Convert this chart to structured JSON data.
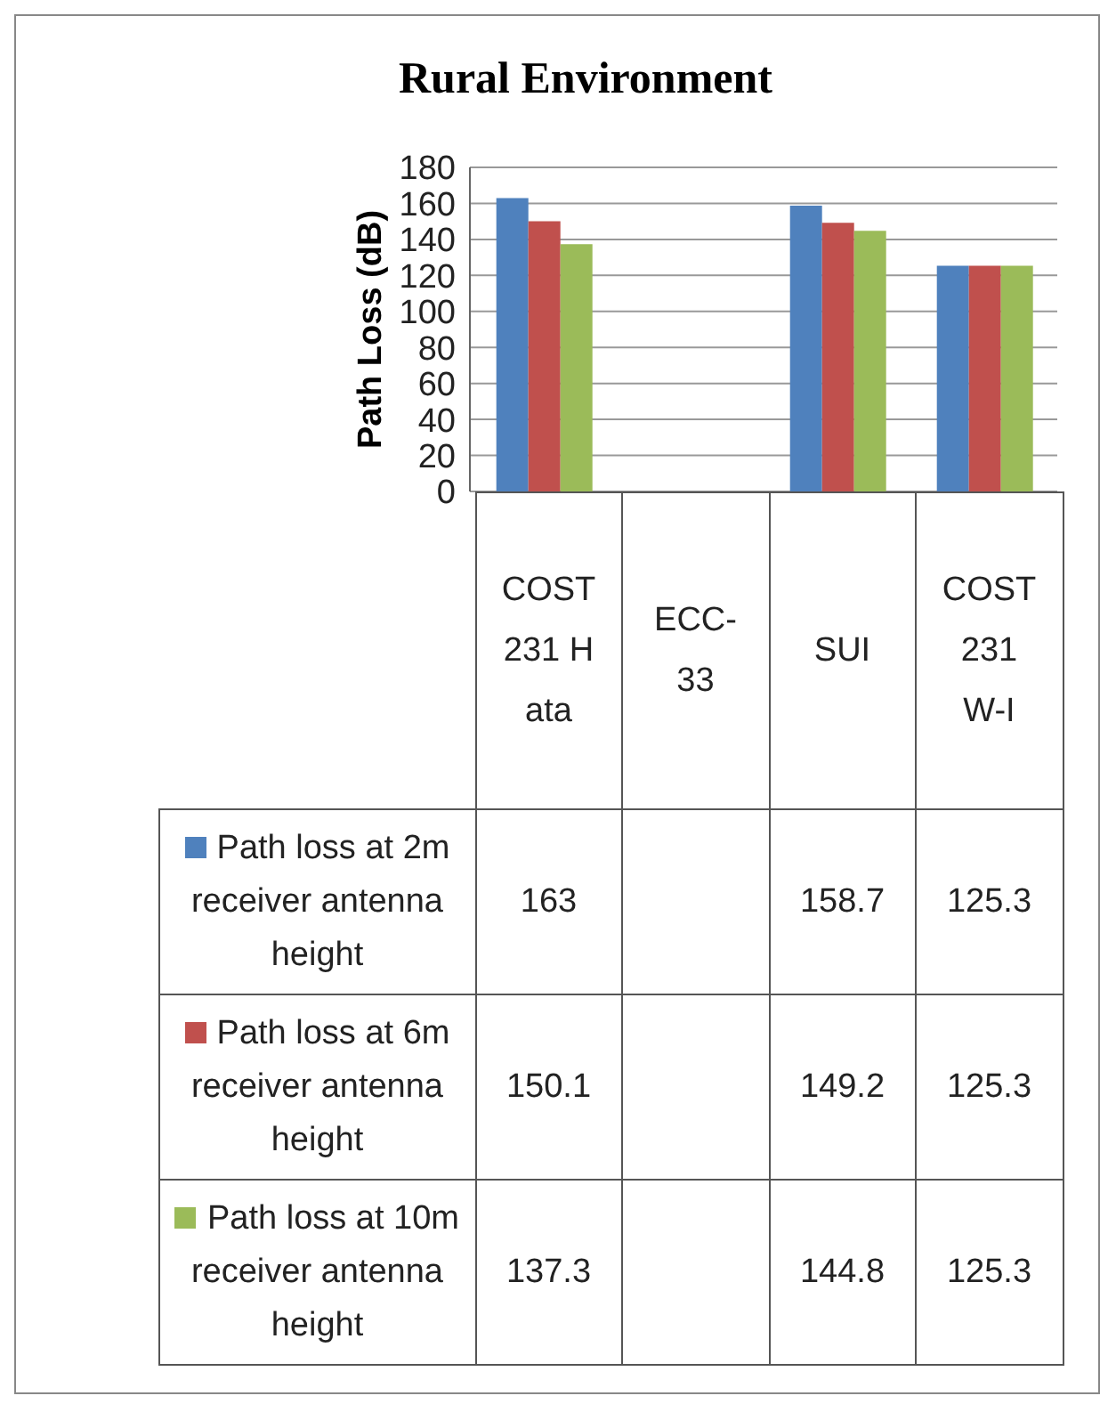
{
  "chart_data": {
    "type": "bar",
    "title": "Rural Environment",
    "ylabel": "Path Loss (dB)",
    "categories": [
      "COST 231 Hata",
      "ECC-33",
      "SUI",
      "COST 231 W-I"
    ],
    "series": [
      {
        "name": "Path loss at 2m receiver antenna height",
        "color": "#4f81bd",
        "values": [
          163,
          null,
          158.7,
          125.3
        ]
      },
      {
        "name": "Path loss at 6m receiver antenna height",
        "color": "#c0504d",
        "values": [
          150.1,
          null,
          149.2,
          125.3
        ]
      },
      {
        "name": "Path loss at 10m receiver antenna height",
        "color": "#9bbb59",
        "values": [
          137.3,
          null,
          144.8,
          125.3
        ]
      }
    ],
    "ylim": [
      0,
      180
    ],
    "yticks": [
      0,
      20,
      40,
      60,
      80,
      100,
      120,
      140,
      160,
      180
    ],
    "grid": "y",
    "legend": "bottom left",
    "data_labels": true
  }
}
